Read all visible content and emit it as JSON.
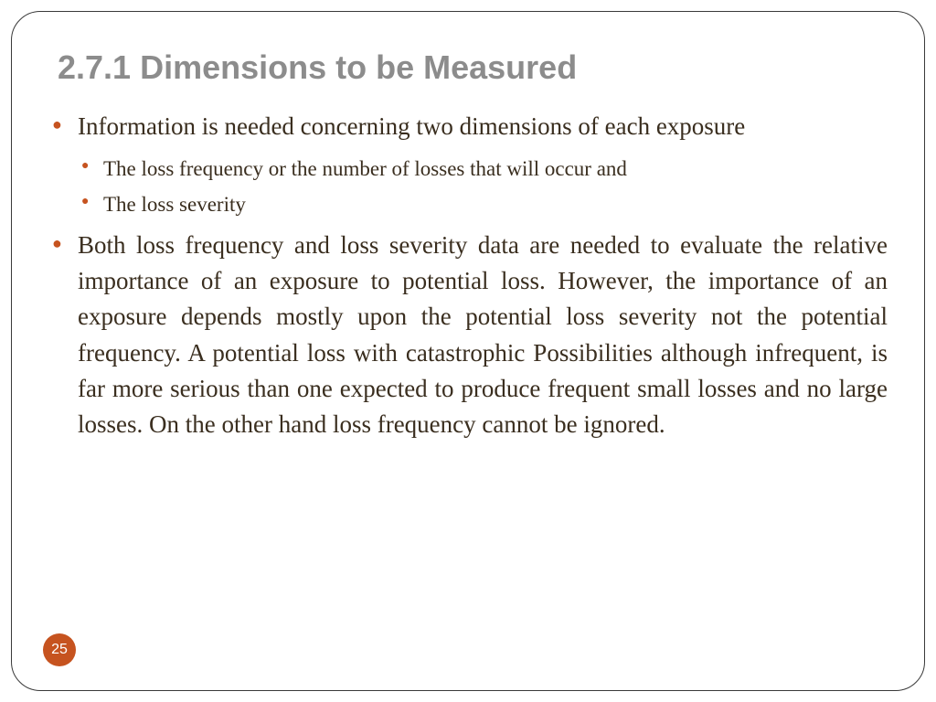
{
  "slide": {
    "title": "2.7.1 Dimensions to be Measured",
    "bullets": [
      {
        "text": "Information is needed concerning two dimensions of each exposure",
        "children": [
          {
            "text": "The loss frequency or the number of losses that will occur and"
          },
          {
            "text": "The loss severity"
          }
        ]
      },
      {
        "text": "Both loss frequency and loss severity data are needed to evaluate the relative importance of an exposure to potential loss. However, the importance of an exposure depends mostly upon the potential loss severity not the potential frequency. A potential loss with catastrophic Possibilities although infrequent, is far more serious than one expected to produce frequent small losses and no large losses. On the other hand loss frequency cannot be ignored."
      }
    ],
    "page_number": "25"
  },
  "style": {
    "title_color": "#8c8c8c",
    "title_fontsize": 36,
    "body_color": "#3a2e1f",
    "body_fontsize_l1": 27,
    "body_fontsize_l2": 23,
    "bullet_color": "#c6531f",
    "page_badge_bg": "#c6531f",
    "page_badge_fg": "#ffffff",
    "frame_border_color": "#3a3a3a",
    "frame_border_radius": 32,
    "background_color": "#ffffff"
  }
}
